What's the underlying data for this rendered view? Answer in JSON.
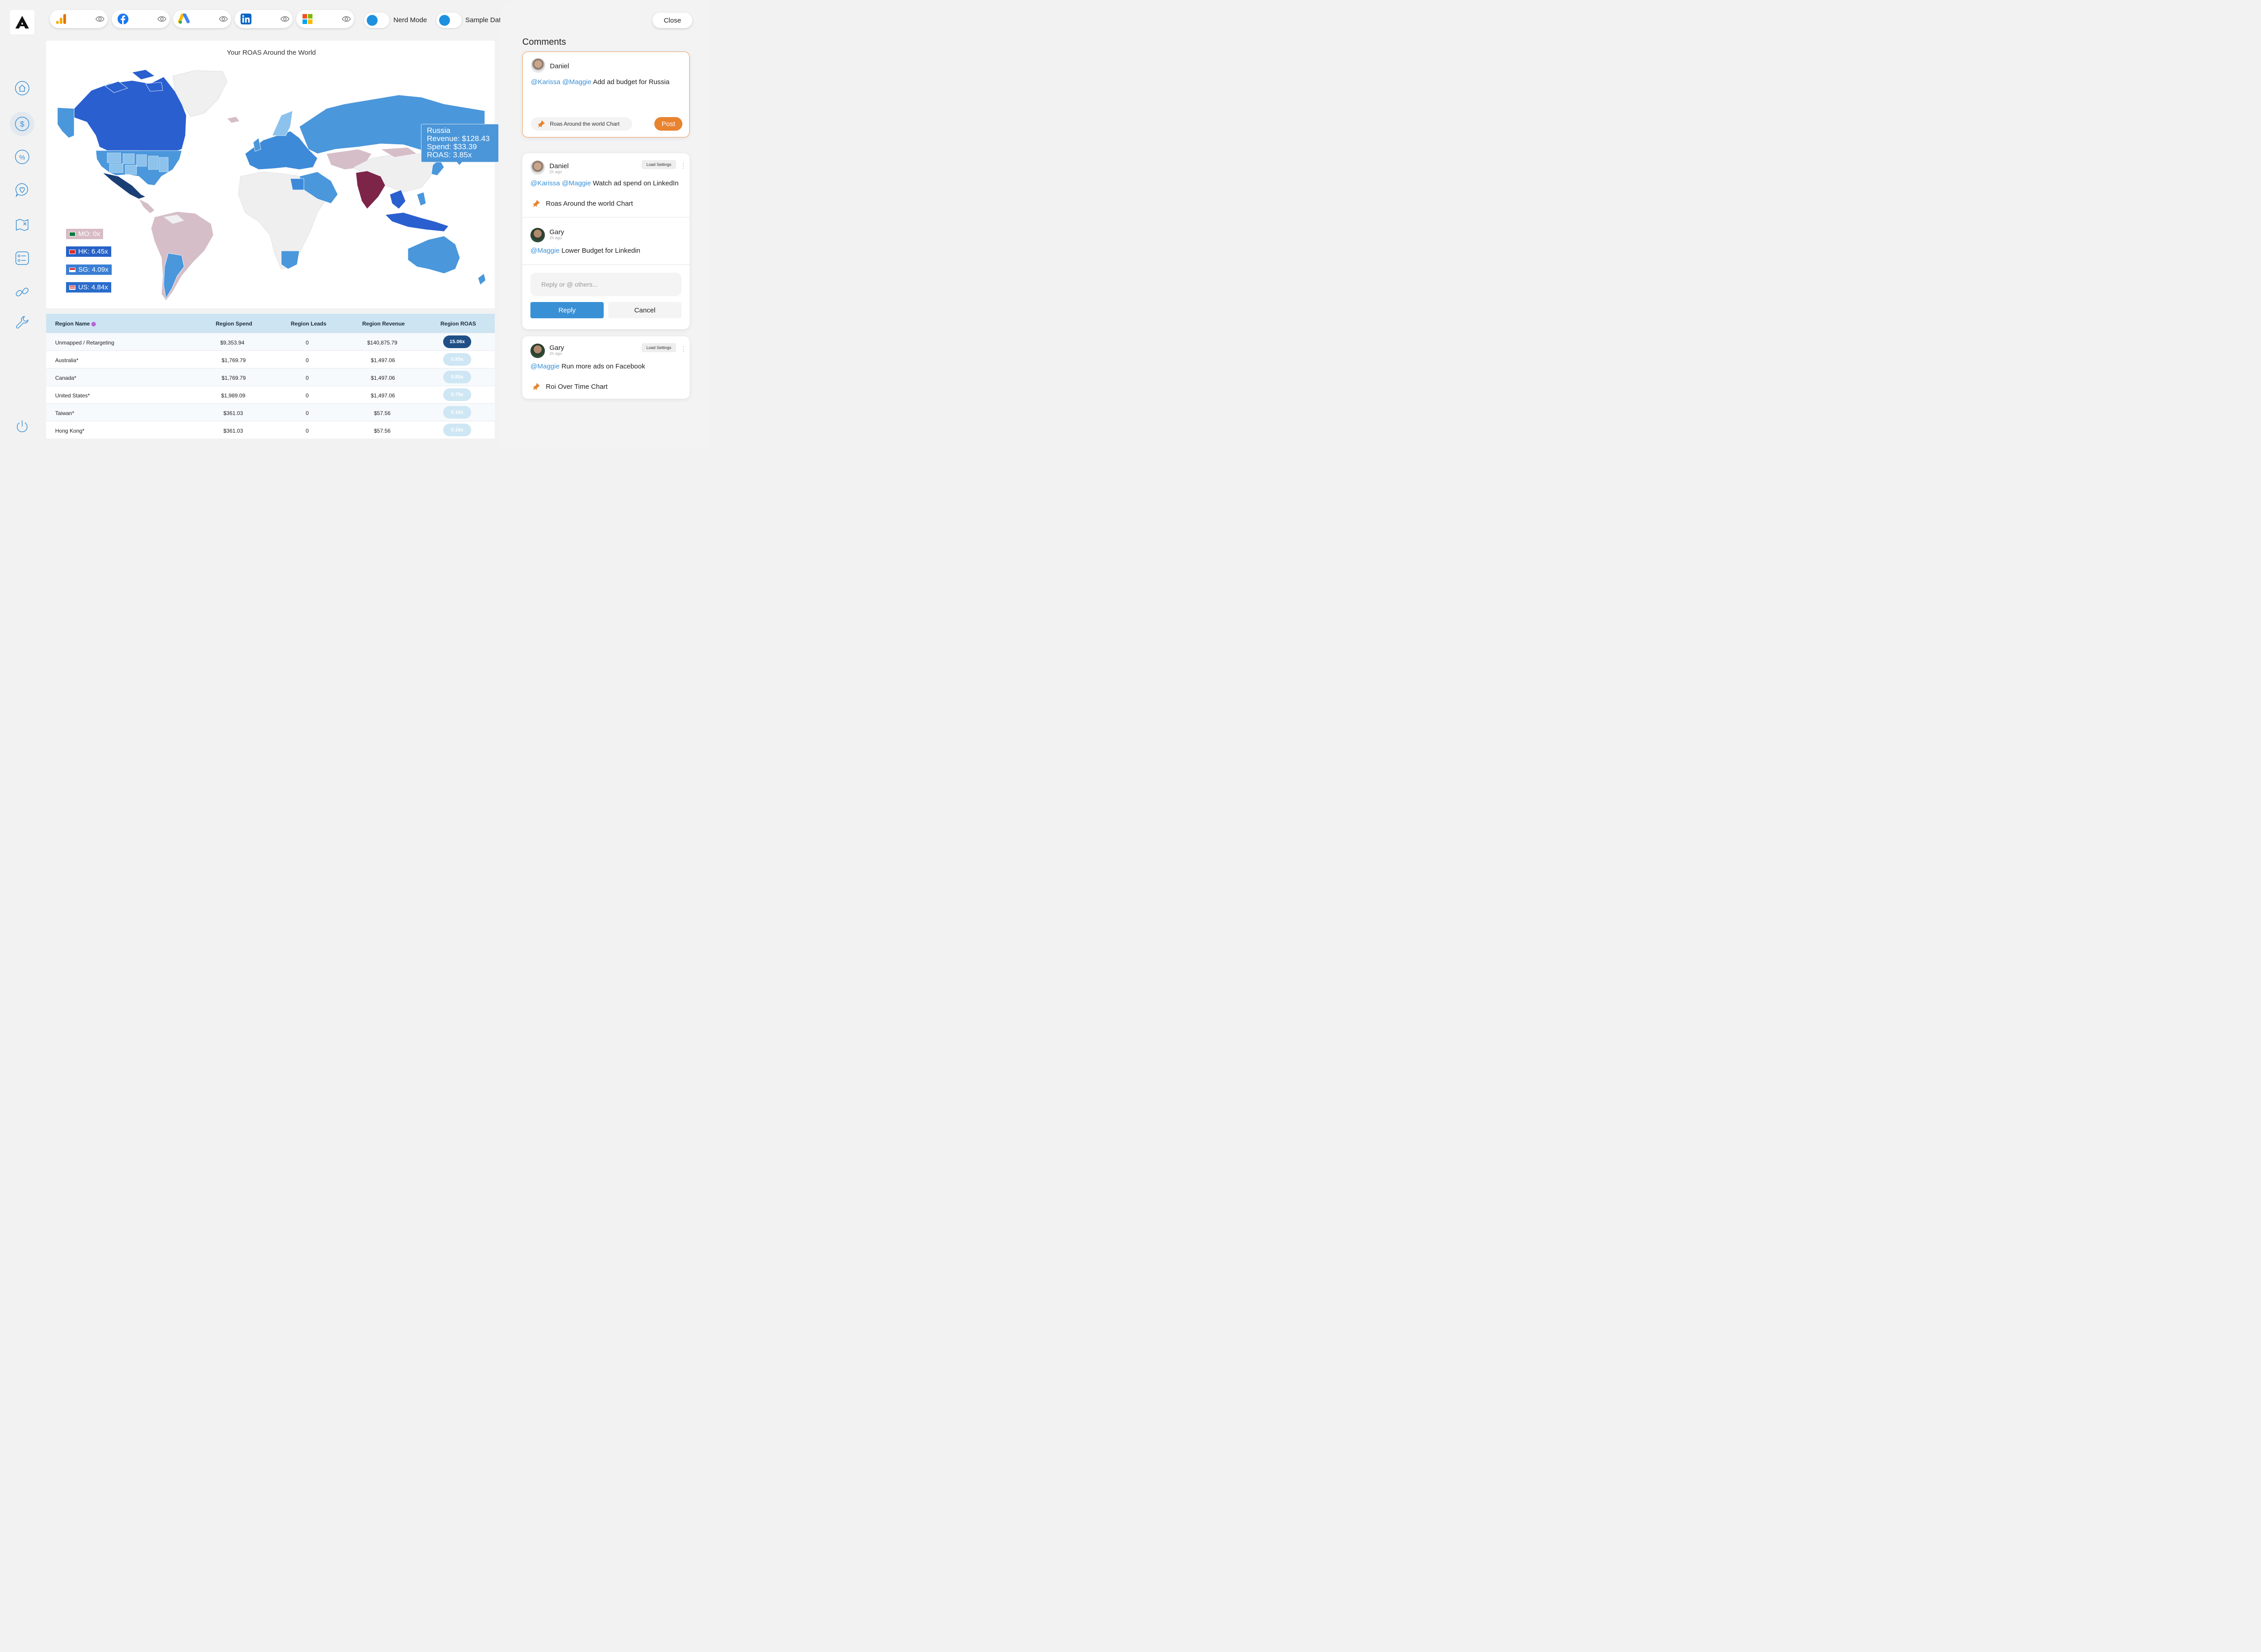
{
  "toggles": {
    "nerd_mode": "Nerd Mode",
    "sample_data": "Sample Data"
  },
  "platforms": [
    "google-analytics",
    "facebook",
    "google-ads",
    "linkedin",
    "microsoft"
  ],
  "map": {
    "title": "Your ROAS Around the World",
    "tooltip": {
      "country": "Russia",
      "revenue": "Revenue: $128.43",
      "spend": "Spend: $33.39",
      "roas": "ROAS: 3.85x"
    },
    "badges": [
      {
        "text": "MO: 0x",
        "color": "#d8bcc5"
      },
      {
        "text": "HK: 6.45x",
        "color": "#2662c7"
      },
      {
        "text": "SG: 4.09x",
        "color": "#3a7fd4"
      },
      {
        "text": "US: 4.84x",
        "color": "#2a6ccb"
      }
    ]
  },
  "table": {
    "headers": {
      "name": "Region Name",
      "spend": "Region Spend",
      "leads": "Region Leads",
      "revenue": "Region Revenue",
      "roas": "Region ROAS"
    },
    "rows": [
      {
        "name": "Unmapped / Retargeting",
        "spend": "$9,353.94",
        "leads": "0",
        "revenue": "$140,875.79",
        "roas": "15.06x",
        "roas_value": 15.06
      },
      {
        "name": "Australia*",
        "spend": "$1,769.79",
        "leads": "0",
        "revenue": "$1,497.06",
        "roas": "0.85x",
        "roas_value": 0.85
      },
      {
        "name": "Canada*",
        "spend": "$1,769.79",
        "leads": "0",
        "revenue": "$1,497.06",
        "roas": "0.85x",
        "roas_value": 0.85
      },
      {
        "name": "United States*",
        "spend": "$1,989.09",
        "leads": "0",
        "revenue": "$1,497.06",
        "roas": "0.75x",
        "roas_value": 0.75
      },
      {
        "name": "Taiwan*",
        "spend": "$361.03",
        "leads": "0",
        "revenue": "$57.56",
        "roas": "0.16x",
        "roas_value": 0.16
      },
      {
        "name": "Hong Kong*",
        "spend": "$361.03",
        "leads": "0",
        "revenue": "$57.56",
        "roas": "0.16x",
        "roas_value": 0.16
      }
    ]
  },
  "comments": {
    "title": "Comments",
    "close": "Close",
    "compose": {
      "user": "Daniel",
      "mentions": "@Karissa @Maggie",
      "text": "Add ad budget for Russia",
      "chart_chip": "Roas Around the world Chart",
      "post": "Post"
    },
    "thread": [
      {
        "user": "Daniel",
        "ago": "2h ago",
        "mentions": "@Karissa @Maggie",
        "text": "Watch ad spend on LinkedIn",
        "chart": "Roas Around the world Chart",
        "load_settings": "Load Settings"
      },
      {
        "user": "Gary",
        "ago": "2h ago",
        "mentions": "@Maggie",
        "text": "Lower Budget for Linkedin"
      }
    ],
    "reply": {
      "placeholder": "Reply or @ others...",
      "reply_btn": "Reply",
      "cancel_btn": "Cancel"
    },
    "last": {
      "user": "Gary",
      "ago": "2h ago",
      "mentions": "@Maggie",
      "text": "Run more ads on Facebook",
      "chart": "Roi Over Time Chart",
      "load_settings": "Load Settings"
    }
  },
  "colors": {
    "accent_blue": "#3a90d5",
    "accent_orange": "#e8832f",
    "dark_pill": "#1f4f86",
    "light_pill": "#cfe7f4"
  }
}
